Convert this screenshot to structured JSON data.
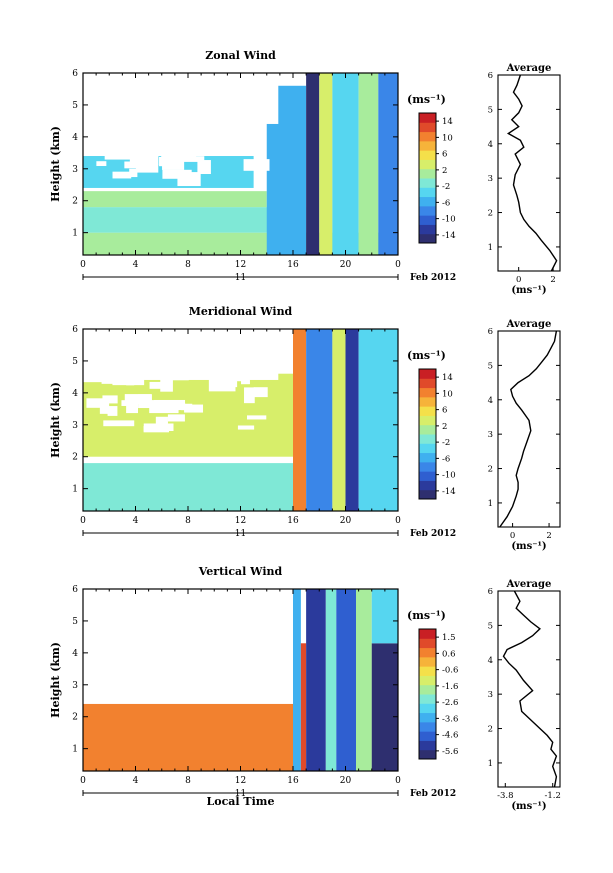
{
  "shared": {
    "x_ticks": [
      "0",
      "4",
      "8",
      "12",
      "16",
      "20",
      "0"
    ],
    "day_label": "11",
    "month_label": "Feb 2012",
    "y_ticks": [
      "1",
      "2",
      "3",
      "4",
      "5",
      "6"
    ],
    "ylabel": "Height (km)",
    "unit": "(ms⁻¹)",
    "avg_title": "Average",
    "avg_xlabel": "(ms⁻¹)",
    "xlabel_bottom": "Local Time"
  },
  "chart_data": [
    {
      "type": "heatmap",
      "title": "Zonal Wind",
      "ylim": [
        0.3,
        6
      ],
      "xlim": [
        0,
        24
      ],
      "colorbar_ticks": [
        "14",
        "10",
        "6",
        "2",
        "-2",
        "-6",
        "-10",
        "-14"
      ],
      "colorbar_range": [
        -16,
        16
      ],
      "bands": [
        {
          "x0": 0,
          "x1": 24,
          "y0": 0.3,
          "y1": 1.0,
          "v": 1.5
        },
        {
          "x0": 0,
          "x1": 17,
          "y0": 1.0,
          "y1": 1.8,
          "v": -1.5
        },
        {
          "x0": 0,
          "x1": 14,
          "y0": 1.8,
          "y1": 2.3,
          "v": 1.5
        },
        {
          "x0": 0,
          "x1": 13,
          "y0": 2.4,
          "y1": 3.4,
          "v": -3
        },
        {
          "x0": 14,
          "x1": 17,
          "y0": 0.3,
          "y1": 5.6,
          "v": -5
        },
        {
          "x0": 17,
          "x1": 18,
          "y0": 0.3,
          "y1": 6,
          "v": -14
        },
        {
          "x0": 18,
          "x1": 19,
          "y0": 0.3,
          "y1": 6,
          "v": 3
        },
        {
          "x0": 19,
          "x1": 21,
          "y0": 0.3,
          "y1": 6,
          "v": -4
        },
        {
          "x0": 21,
          "x1": 22.5,
          "y0": 0.3,
          "y1": 6,
          "v": 2
        },
        {
          "x0": 22.5,
          "x1": 24,
          "y0": 0.3,
          "y1": 6,
          "v": -7
        }
      ],
      "average": {
        "xticks": [
          "0",
          "2"
        ],
        "xlim": [
          -1.2,
          2.4
        ],
        "x": [
          1.9,
          2.2,
          1.8,
          1.3,
          1.0,
          0.6,
          0.3,
          0.1,
          0.0,
          -0.1,
          -0.3,
          -0.2,
          0.1,
          -0.2,
          0.3,
          0.1,
          -0.6,
          0.0,
          -0.4,
          0.0,
          0.2,
          0.0,
          -0.3,
          -0.1,
          0.1
        ],
        "y": [
          0.3,
          0.6,
          0.9,
          1.2,
          1.4,
          1.6,
          1.8,
          2.0,
          2.3,
          2.5,
          2.8,
          3.1,
          3.4,
          3.7,
          3.9,
          4.1,
          4.3,
          4.5,
          4.7,
          4.9,
          5.1,
          5.3,
          5.5,
          5.7,
          6.0
        ]
      }
    },
    {
      "type": "heatmap",
      "title": "Meridional Wind",
      "ylim": [
        0.3,
        6
      ],
      "xlim": [
        0,
        24
      ],
      "colorbar_ticks": [
        "14",
        "10",
        "6",
        "2",
        "-2",
        "-6",
        "-10",
        "-14"
      ],
      "colorbar_range": [
        -16,
        16
      ],
      "bands": [
        {
          "x0": 0,
          "x1": 16,
          "y0": 0.3,
          "y1": 1.8,
          "v": -1.5
        },
        {
          "x0": 0,
          "x1": 16,
          "y0": 2.0,
          "y1": 4.6,
          "v": 3
        },
        {
          "x0": 16,
          "x1": 17,
          "y0": 0.3,
          "y1": 6,
          "v": 10
        },
        {
          "x0": 17,
          "x1": 19,
          "y0": 0.3,
          "y1": 6,
          "v": -8
        },
        {
          "x0": 19,
          "x1": 20,
          "y0": 0.3,
          "y1": 6,
          "v": 3
        },
        {
          "x0": 20,
          "x1": 21,
          "y0": 0.3,
          "y1": 6,
          "v": -12
        },
        {
          "x0": 21,
          "x1": 24,
          "y0": 0.3,
          "y1": 6,
          "v": -3
        }
      ],
      "average": {
        "xticks": [
          "0",
          "2"
        ],
        "xlim": [
          -0.8,
          2.6
        ],
        "x": [
          -0.7,
          -0.3,
          0.0,
          0.2,
          0.3,
          0.3,
          0.2,
          0.3,
          0.5,
          0.6,
          0.8,
          1.0,
          0.9,
          0.5,
          0.2,
          0.0,
          -0.1,
          0.3,
          0.9,
          1.3,
          1.6,
          1.9,
          2.1,
          2.3,
          2.4
        ],
        "y": [
          0.3,
          0.6,
          0.9,
          1.2,
          1.4,
          1.6,
          1.8,
          2.0,
          2.3,
          2.5,
          2.8,
          3.1,
          3.4,
          3.7,
          3.9,
          4.1,
          4.3,
          4.5,
          4.7,
          4.9,
          5.1,
          5.3,
          5.5,
          5.7,
          6.0
        ]
      }
    },
    {
      "type": "heatmap",
      "title": "Vertical Wind",
      "ylim": [
        0.3,
        6
      ],
      "xlim": [
        0,
        24
      ],
      "colorbar_ticks": [
        "1.5",
        "0.6",
        "-0.6",
        "-1.6",
        "-2.6",
        "-3.6",
        "-4.6",
        "-5.6"
      ],
      "colorbar_range": [
        -6,
        2
      ],
      "bands": [
        {
          "x0": 0,
          "x1": 16,
          "y0": 0.3,
          "y1": 2.4,
          "v": 0.6
        },
        {
          "x0": 16,
          "x1": 16.6,
          "y0": 0.3,
          "y1": 6,
          "v": -3.5
        },
        {
          "x0": 16.6,
          "x1": 17,
          "y0": 0.3,
          "y1": 4.3,
          "v": 1.4
        },
        {
          "x0": 17,
          "x1": 18.5,
          "y0": 0.3,
          "y1": 6,
          "v": -5.2
        },
        {
          "x0": 18.5,
          "x1": 19.3,
          "y0": 0.3,
          "y1": 6,
          "v": -2.5
        },
        {
          "x0": 19.3,
          "x1": 20.8,
          "y0": 0.3,
          "y1": 6,
          "v": -4.5
        },
        {
          "x0": 20.8,
          "x1": 22,
          "y0": 0.3,
          "y1": 6,
          "v": -1.5
        },
        {
          "x0": 22,
          "x1": 24,
          "y0": 0.3,
          "y1": 4.3,
          "v": -5.8
        },
        {
          "x0": 22,
          "x1": 24,
          "y0": 4.3,
          "y1": 6,
          "v": -2.8
        }
      ],
      "average": {
        "xticks": [
          "-3.8",
          "-1.2"
        ],
        "xlim": [
          -4.2,
          -0.8
        ],
        "x": [
          -1.1,
          -1.0,
          -1.2,
          -1.0,
          -1.3,
          -1.2,
          -1.5,
          -1.9,
          -2.5,
          -2.9,
          -3.0,
          -2.3,
          -2.8,
          -3.2,
          -3.6,
          -3.9,
          -3.7,
          -2.9,
          -2.3,
          -1.9,
          -2.4,
          -2.8,
          -3.2,
          -3.0,
          -3.3
        ],
        "y": [
          0.3,
          0.6,
          0.9,
          1.2,
          1.4,
          1.6,
          1.8,
          2.0,
          2.3,
          2.5,
          2.8,
          3.1,
          3.4,
          3.7,
          3.9,
          4.1,
          4.3,
          4.5,
          4.7,
          4.9,
          5.1,
          5.3,
          5.5,
          5.7,
          6.0
        ]
      }
    }
  ]
}
